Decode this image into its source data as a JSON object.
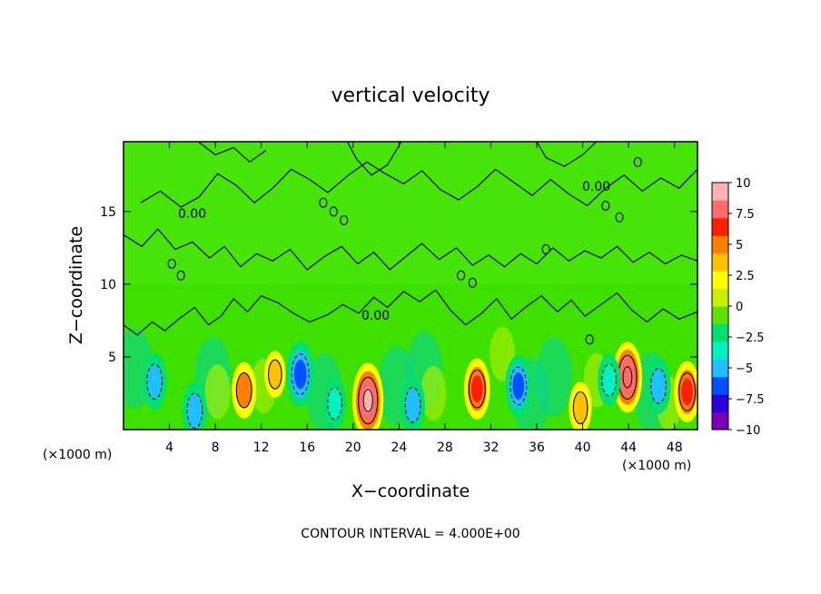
{
  "chart_data": {
    "type": "heatmap",
    "title": "vertical velocity",
    "xlabel": "X−coordinate",
    "ylabel": "Z−coordinate",
    "x_unit_left": "(×1000 m)",
    "x_unit_right": "(×1000 m)",
    "xlim": [
      0,
      50
    ],
    "ylim": [
      0,
      19.8
    ],
    "x_ticks": [
      "4",
      "8",
      "12",
      "16",
      "20",
      "24",
      "28",
      "32",
      "36",
      "40",
      "44",
      "48"
    ],
    "y_ticks": [
      "5",
      "10",
      "15"
    ],
    "x_tick_values": [
      4,
      8,
      12,
      16,
      20,
      24,
      28,
      32,
      36,
      40,
      44,
      48
    ],
    "y_tick_values": [
      5,
      10,
      15
    ],
    "colorbar": {
      "ticks": [
        "10",
        "7.5",
        "5",
        "2.5",
        "0",
        "−2.5",
        "−5",
        "−7.5",
        "−10"
      ],
      "tick_values": [
        10,
        7.5,
        5,
        2.5,
        0,
        -2.5,
        -5,
        -7.5,
        -10
      ],
      "range": [
        -10,
        10
      ],
      "colors": [
        "#7a00b8",
        "#2a00d8",
        "#0050ff",
        "#1ec0ff",
        "#00f0c0",
        "#00e070",
        "#60e000",
        "#c8f000",
        "#ffff00",
        "#ffc000",
        "#ff8000",
        "#ff2000",
        "#ff6a6a",
        "#ffb0b0"
      ]
    },
    "contour_interval_text": "CONTOUR INTERVAL = 4.000E+00",
    "contour_label": "0.00",
    "features": [
      {
        "kind": "updraft",
        "x": 10.5,
        "z": 2.7,
        "peak": 5
      },
      {
        "kind": "updraft",
        "x": 13.2,
        "z": 3.8,
        "peak": 3
      },
      {
        "kind": "updraft",
        "x": 21.3,
        "z": 2.0,
        "peak": 9
      },
      {
        "kind": "updraft",
        "x": 30.8,
        "z": 2.8,
        "peak": 6
      },
      {
        "kind": "updraft",
        "x": 39.8,
        "z": 1.5,
        "peak": 4
      },
      {
        "kind": "updraft",
        "x": 43.9,
        "z": 3.6,
        "peak": 8
      },
      {
        "kind": "updraft",
        "x": 49.1,
        "z": 2.6,
        "peak": 6
      },
      {
        "kind": "downdraft",
        "x": 2.7,
        "z": 3.3,
        "peak": -5
      },
      {
        "kind": "downdraft",
        "x": 6.2,
        "z": 1.3,
        "peak": -5
      },
      {
        "kind": "downdraft",
        "x": 15.4,
        "z": 3.8,
        "peak": -7
      },
      {
        "kind": "downdraft",
        "x": 18.4,
        "z": 1.8,
        "peak": -4
      },
      {
        "kind": "downdraft",
        "x": 25.2,
        "z": 1.7,
        "peak": -5
      },
      {
        "kind": "downdraft",
        "x": 34.4,
        "z": 3.0,
        "peak": -6
      },
      {
        "kind": "downdraft",
        "x": 42.3,
        "z": 3.4,
        "peak": -4
      },
      {
        "kind": "downdraft",
        "x": 46.6,
        "z": 3.0,
        "peak": -5
      }
    ]
  }
}
